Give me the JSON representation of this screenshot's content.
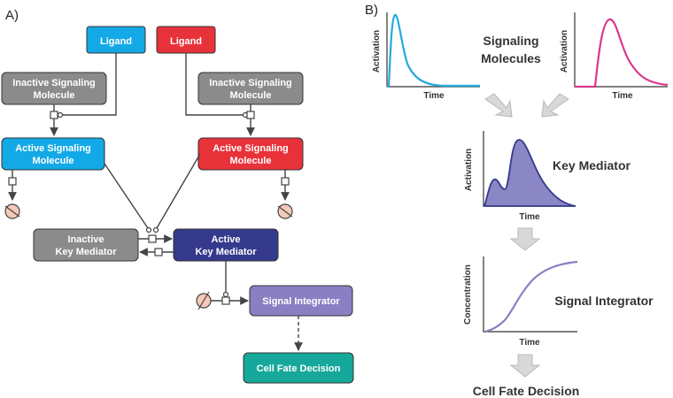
{
  "panel_a": {
    "label": "A)",
    "ligand_left": "Ligand",
    "ligand_right": "Ligand",
    "inactive_left": [
      "Inactive Signaling",
      "Molecule"
    ],
    "inactive_right": [
      "Inactive Signaling",
      "Molecule"
    ],
    "active_left": [
      "Active Signaling",
      "Molecule"
    ],
    "active_right": [
      "Active Signaling",
      "Molecule"
    ],
    "inactive_mediator": [
      "Inactive",
      "Key Mediator"
    ],
    "active_mediator": [
      "Active",
      "Key Mediator"
    ],
    "signal_integrator": "Signal Integrator",
    "cell_fate": "Cell Fate Decision"
  },
  "panel_b": {
    "label": "B)",
    "signaling_title": [
      "Signaling",
      "Molecules"
    ],
    "key_mediator_title": "Key Mediator",
    "signal_integrator_title": "Signal Integrator",
    "cell_fate_title": "Cell Fate Decision",
    "activation_label": "Activation",
    "concentration_label": "Concentration",
    "time_label": "Time"
  },
  "colors": {
    "ligand_blue": "#13a9e6",
    "ligand_red": "#e8323a",
    "inactive_gray": "#8b8b8b",
    "active_blue": "#13a9e6",
    "active_red": "#e8323a",
    "mediator_navy": "#353a8c",
    "integrator_purple": "#8a7fc2",
    "fate_teal": "#16a89a",
    "degrade_fill": "#f4c9b8",
    "curve_blue": "#22a9dc",
    "curve_magenta": "#d8388f",
    "area_purple": "#8b86c4",
    "arrow_gray": "#d8d8d8"
  }
}
